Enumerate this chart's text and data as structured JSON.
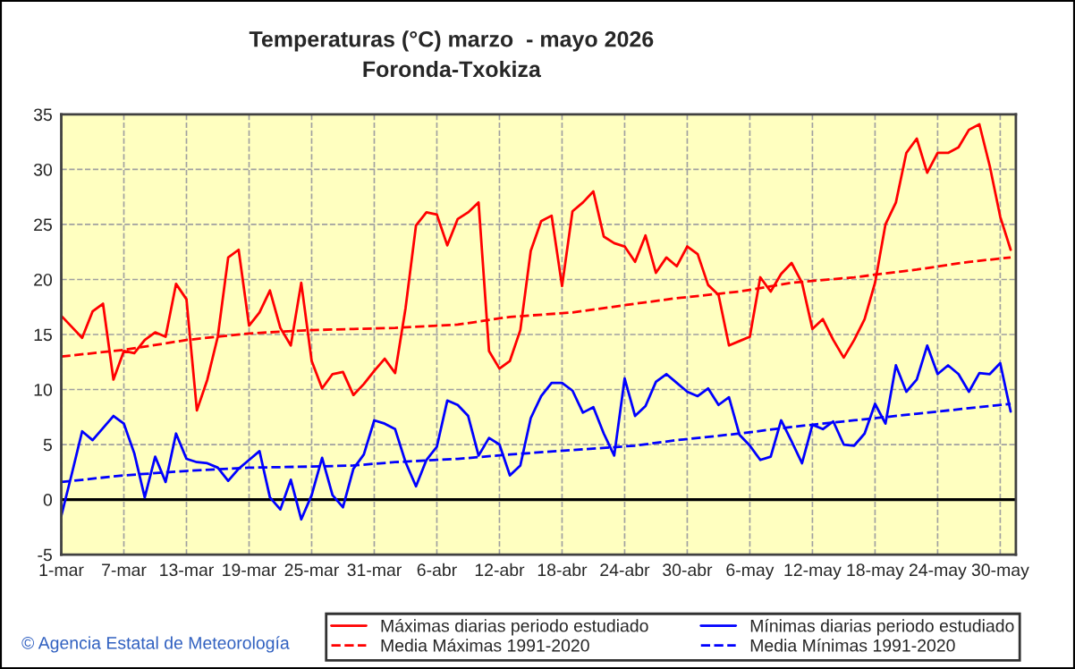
{
  "chart_data": {
    "type": "line",
    "title": "Temperaturas (°C) marzo  - mayo 2026",
    "subtitle": "Foronda-Txokiza",
    "annotations": [
      "© Agencia Estatal de Meteorología"
    ],
    "x": [
      "2026-03-01",
      "2026-03-02",
      "2026-03-03",
      "2026-03-04",
      "2026-03-05",
      "2026-03-06",
      "2026-03-07",
      "2026-03-08",
      "2026-03-09",
      "2026-03-10",
      "2026-03-11",
      "2026-03-12",
      "2026-03-13",
      "2026-03-14",
      "2026-03-15",
      "2026-03-16",
      "2026-03-17",
      "2026-03-18",
      "2026-03-19",
      "2026-03-20",
      "2026-03-21",
      "2026-03-22",
      "2026-03-23",
      "2026-03-24",
      "2026-03-25",
      "2026-03-26",
      "2026-03-27",
      "2026-03-28",
      "2026-03-29",
      "2026-03-30",
      "2026-03-31",
      "2026-04-01",
      "2026-04-02",
      "2026-04-03",
      "2026-04-04",
      "2026-04-05",
      "2026-04-06",
      "2026-04-07",
      "2026-04-08",
      "2026-04-09",
      "2026-04-10",
      "2026-04-11",
      "2026-04-12",
      "2026-04-13",
      "2026-04-14",
      "2026-04-15",
      "2026-04-16",
      "2026-04-17",
      "2026-04-18",
      "2026-04-19",
      "2026-04-20",
      "2026-04-21",
      "2026-04-22",
      "2026-04-23",
      "2026-04-24",
      "2026-04-25",
      "2026-04-26",
      "2026-04-27",
      "2026-04-28",
      "2026-04-29",
      "2026-04-30",
      "2026-05-01",
      "2026-05-02",
      "2026-05-03",
      "2026-05-04",
      "2026-05-05",
      "2026-05-06",
      "2026-05-07",
      "2026-05-08",
      "2026-05-09",
      "2026-05-10",
      "2026-05-11",
      "2026-05-12",
      "2026-05-13",
      "2026-05-14",
      "2026-05-15",
      "2026-05-16",
      "2026-05-17",
      "2026-05-18",
      "2026-05-19",
      "2026-05-20",
      "2026-05-21",
      "2026-05-22",
      "2026-05-23",
      "2026-05-24",
      "2026-05-25",
      "2026-05-26",
      "2026-05-27",
      "2026-05-28",
      "2026-05-29",
      "2026-05-30",
      "2026-05-31"
    ],
    "series": [
      {
        "name": "Máximas diarias periodo estudiado",
        "color": "#ff0000",
        "line_style": "solid",
        "values": [
          16.7,
          15.7,
          14.7,
          17.1,
          17.8,
          10.9,
          13.5,
          13.3,
          14.5,
          15.2,
          14.8,
          19.6,
          18.2,
          8.1,
          10.9,
          14.8,
          22.0,
          22.7,
          15.8,
          17.0,
          19.0,
          15.6,
          14.0,
          19.7,
          12.6,
          10.1,
          11.4,
          11.6,
          9.5,
          10.5,
          11.7,
          12.8,
          11.5,
          17.4,
          24.9,
          26.1,
          25.9,
          23.1,
          25.5,
          26.1,
          27.0,
          13.5,
          11.9,
          12.6,
          15.4,
          22.6,
          25.3,
          25.8,
          19.4,
          26.2,
          27.0,
          28.0,
          23.9,
          23.3,
          23.0,
          21.6,
          24.0,
          20.6,
          22.0,
          21.2,
          23.0,
          22.3,
          19.5,
          18.6,
          14.0,
          14.4,
          14.8,
          20.2,
          18.9,
          20.5,
          21.5,
          19.7,
          15.5,
          16.4,
          14.5,
          12.9,
          14.5,
          16.4,
          19.7,
          25.0,
          27.0,
          31.5,
          32.8,
          29.7,
          31.5,
          31.5,
          32.0,
          33.6,
          34.1,
          30.3,
          25.7,
          22.7
        ]
      },
      {
        "name": "Mínimas diarias periodo estudiado",
        "color": "#0000ff",
        "line_style": "solid",
        "values": [
          -1.5,
          2.3,
          6.2,
          5.4,
          6.5,
          7.6,
          6.9,
          4.2,
          0.2,
          3.9,
          1.6,
          6.0,
          3.7,
          3.4,
          3.3,
          2.9,
          1.7,
          2.8,
          3.6,
          4.4,
          0.2,
          -0.9,
          1.8,
          -1.8,
          0.4,
          3.8,
          0.4,
          -0.7,
          2.8,
          4.1,
          7.2,
          6.9,
          6.4,
          3.4,
          1.2,
          3.6,
          4.8,
          9.0,
          8.6,
          7.6,
          4.0,
          5.6,
          5.0,
          2.2,
          3.1,
          7.4,
          9.4,
          10.6,
          10.6,
          9.9,
          7.9,
          8.4,
          6.0,
          4.0,
          11.0,
          7.6,
          8.5,
          10.7,
          11.4,
          10.6,
          9.8,
          9.4,
          10.1,
          8.6,
          9.3,
          5.9,
          4.9,
          3.6,
          3.9,
          7.2,
          5.3,
          3.3,
          6.8,
          6.4,
          7.1,
          5.0,
          4.9,
          6.0,
          8.7,
          6.9,
          12.2,
          9.8,
          10.9,
          14.0,
          11.4,
          12.2,
          11.4,
          9.8,
          11.5,
          11.4,
          12.4,
          8.0
        ]
      },
      {
        "name": "Media Máximas 1991-2020",
        "color": "#ff0000",
        "line_style": "dashed",
        "x": [
          "2026-03-01",
          "2026-03-07",
          "2026-03-13",
          "2026-03-19",
          "2026-03-25",
          "2026-03-29",
          "2026-04-02",
          "2026-04-08",
          "2026-04-13",
          "2026-04-19",
          "2026-04-25",
          "2026-04-29",
          "2026-05-05",
          "2026-05-10",
          "2026-05-16",
          "2026-05-22",
          "2026-05-27",
          "2026-05-31"
        ],
        "values": [
          13.0,
          13.6,
          14.5,
          15.1,
          15.4,
          15.5,
          15.6,
          15.9,
          16.6,
          17.0,
          17.8,
          18.3,
          18.9,
          19.7,
          20.2,
          20.9,
          21.6,
          22.0
        ]
      },
      {
        "name": "Media Mínimas 1991-2020",
        "color": "#0000ff",
        "line_style": "dashed",
        "x": [
          "2026-03-01",
          "2026-03-07",
          "2026-03-13",
          "2026-03-19",
          "2026-03-25",
          "2026-03-29",
          "2026-04-02",
          "2026-04-08",
          "2026-04-13",
          "2026-04-19",
          "2026-04-25",
          "2026-04-29",
          "2026-05-05",
          "2026-05-10",
          "2026-05-16",
          "2026-05-22",
          "2026-05-27",
          "2026-05-31"
        ],
        "values": [
          1.6,
          2.2,
          2.6,
          2.9,
          3.0,
          3.1,
          3.4,
          3.7,
          4.1,
          4.5,
          4.9,
          5.4,
          6.0,
          6.6,
          7.2,
          7.8,
          8.3,
          8.7
        ]
      }
    ],
    "xlim": [
      "2026-03-01",
      "2026-05-31T12:00"
    ],
    "xticks": [
      {
        "value": "2026-03-01",
        "label": "1-mar"
      },
      {
        "value": "2026-03-07",
        "label": "7-mar"
      },
      {
        "value": "2026-03-13",
        "label": "13-mar"
      },
      {
        "value": "2026-03-19",
        "label": "19-mar"
      },
      {
        "value": "2026-03-25",
        "label": "25-mar"
      },
      {
        "value": "2026-03-31",
        "label": "31-mar"
      },
      {
        "value": "2026-04-06",
        "label": "6-abr"
      },
      {
        "value": "2026-04-12",
        "label": "12-abr"
      },
      {
        "value": "2026-04-18",
        "label": "18-abr"
      },
      {
        "value": "2026-04-24",
        "label": "24-abr"
      },
      {
        "value": "2026-04-30",
        "label": "30-abr"
      },
      {
        "value": "2026-05-06",
        "label": "6-may"
      },
      {
        "value": "2026-05-12",
        "label": "12-may"
      },
      {
        "value": "2026-05-18",
        "label": "18-may"
      },
      {
        "value": "2026-05-24",
        "label": "24-may"
      },
      {
        "value": "2026-05-30",
        "label": "30-may"
      }
    ],
    "ylim": [
      -5,
      35
    ],
    "yticks": [
      -5,
      0,
      5,
      10,
      15,
      20,
      25,
      30,
      35
    ],
    "ref_lines": [
      {
        "axis": "y",
        "value": 0,
        "color": "#000000"
      }
    ],
    "grid": true,
    "legend": "bottom",
    "marker": "none"
  }
}
